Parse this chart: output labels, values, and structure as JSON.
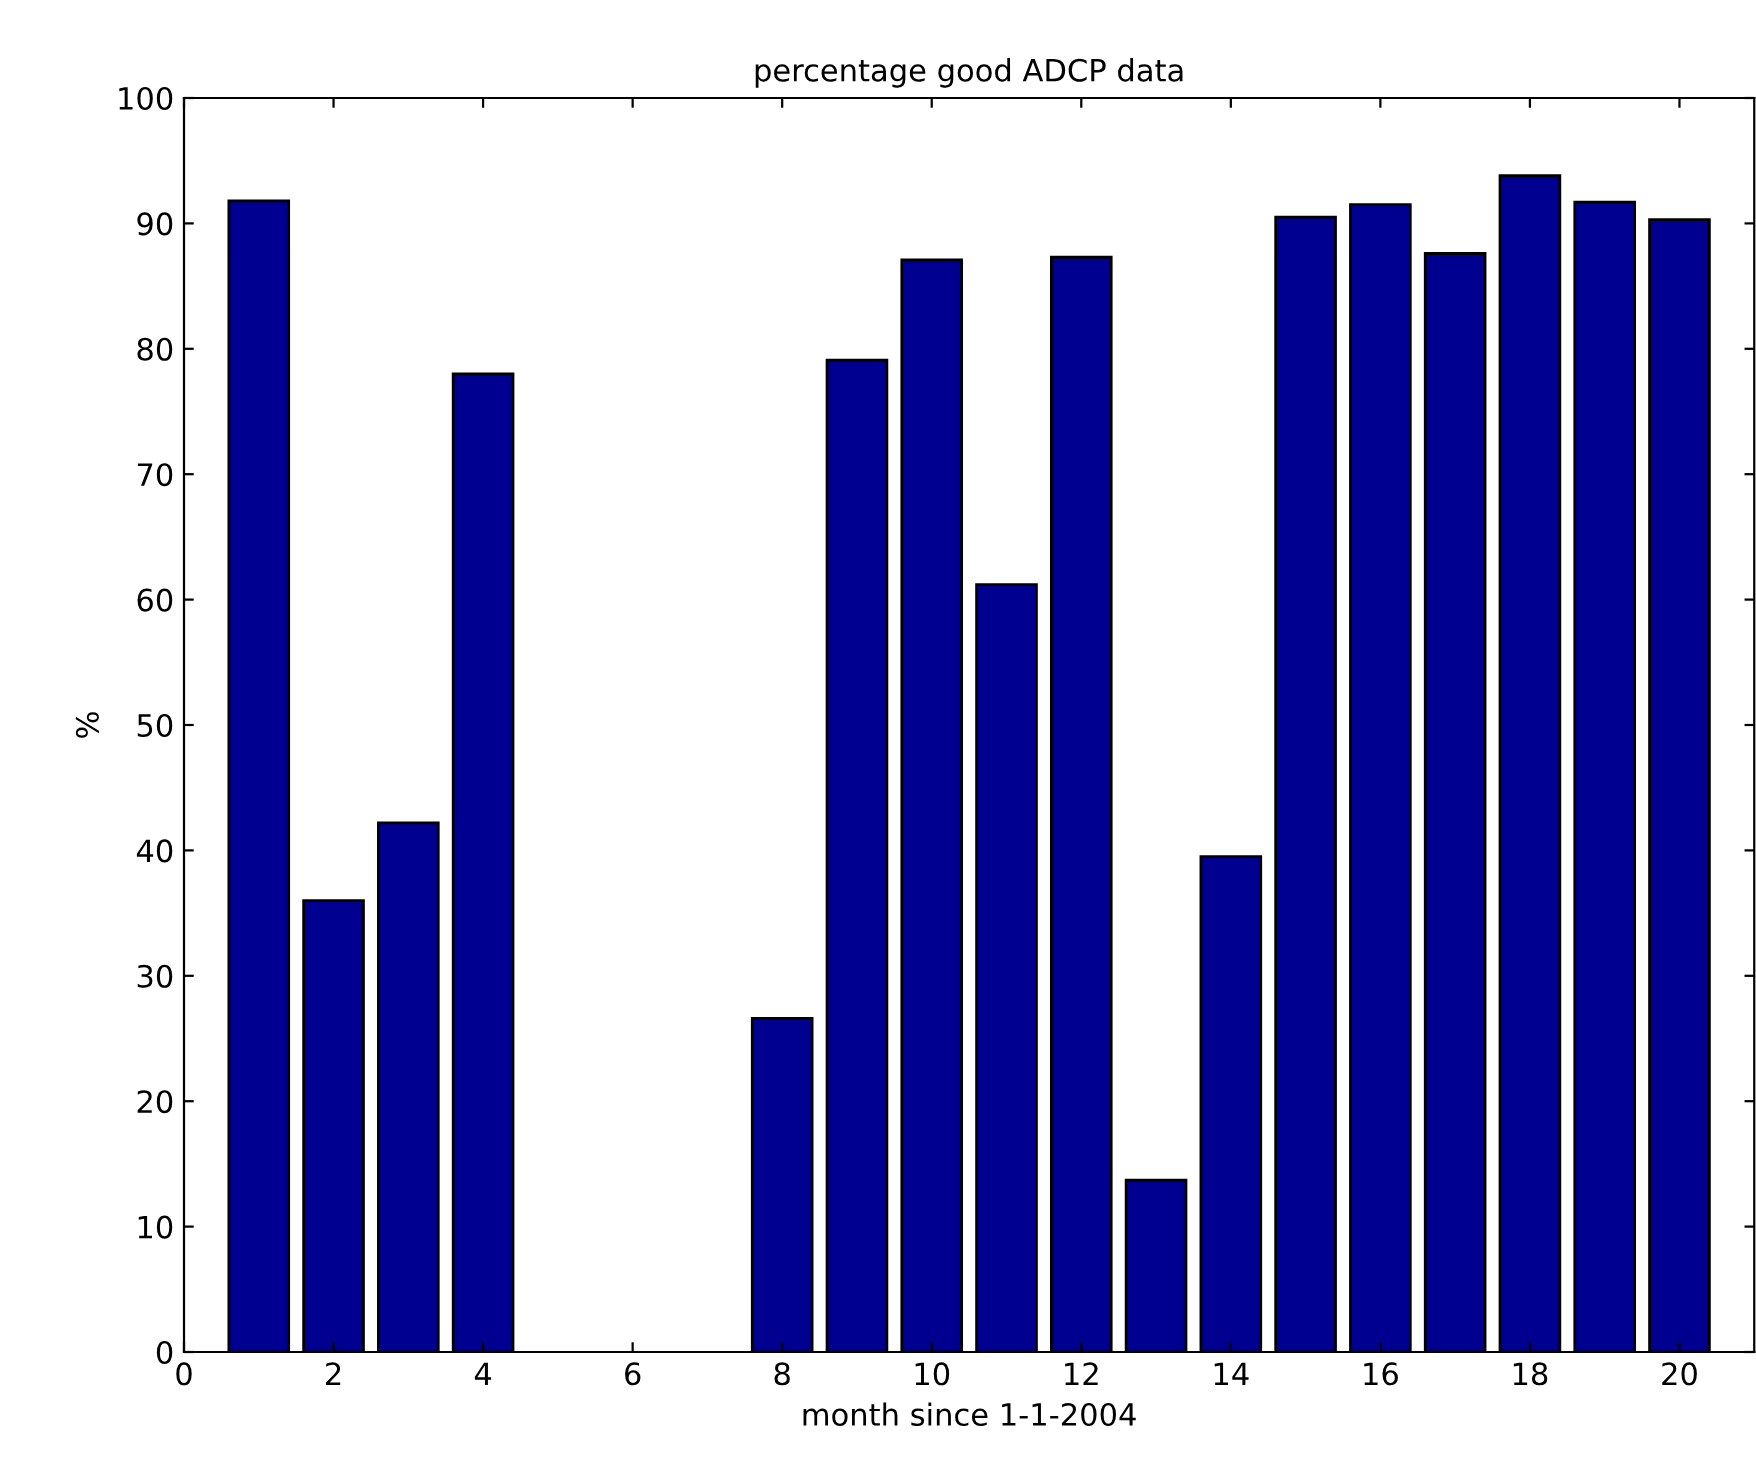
{
  "chart_data": {
    "type": "bar",
    "title": "percentage good ADCP data",
    "xlabel": "month since 1-1-2004",
    "ylabel": "%",
    "x": [
      1,
      2,
      3,
      4,
      5,
      6,
      7,
      8,
      9,
      10,
      11,
      12,
      13,
      14,
      15,
      16,
      17,
      18,
      19,
      20
    ],
    "values": [
      91.8,
      36.0,
      42.2,
      78.0,
      null,
      null,
      null,
      26.6,
      79.1,
      87.1,
      61.2,
      87.3,
      13.7,
      39.5,
      90.5,
      91.5,
      87.6,
      93.8,
      91.7,
      90.3
    ],
    "color": "#000090",
    "xlim": [
      0,
      21
    ],
    "xticks": [
      0,
      2,
      4,
      6,
      8,
      10,
      12,
      14,
      16,
      18,
      20
    ],
    "ylim": [
      0,
      100
    ],
    "yticks": [
      0,
      10,
      20,
      30,
      40,
      50,
      60,
      70,
      80,
      90,
      100
    ],
    "grid": false,
    "legend": false
  }
}
